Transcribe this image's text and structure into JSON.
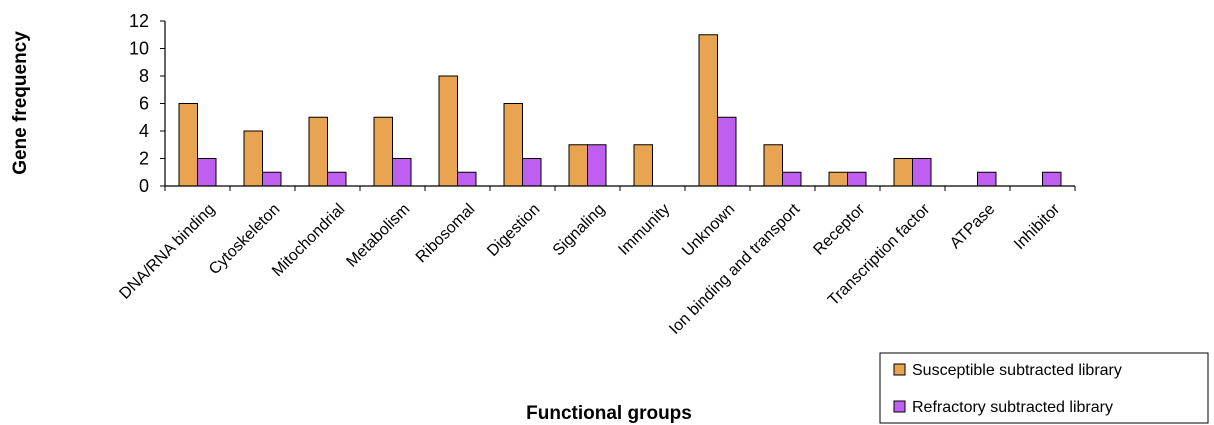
{
  "chart_data": {
    "type": "bar",
    "title": "",
    "xlabel": "Functional groups",
    "ylabel": "Gene frequency",
    "ylim": [
      0,
      12
    ],
    "yticks": [
      0,
      2,
      4,
      6,
      8,
      10,
      12
    ],
    "grid": false,
    "legend_position": "bottom-right",
    "categories": [
      "DNA/RNA binding",
      "Cytoskeleton",
      "Mitochondrial",
      "Metabolism",
      "Ribosomal",
      "Digestion",
      "Signaling",
      "Immunity",
      "Unknown",
      "Ion binding and transport",
      "Receptor",
      "Transcription factor",
      "ATPase",
      "Inhibitor"
    ],
    "series": [
      {
        "name": "Susceptible subtracted library",
        "color": "#E8A450",
        "values": [
          6,
          4,
          5,
          5,
          8,
          6,
          3,
          3,
          11,
          3,
          1,
          2,
          0,
          0
        ]
      },
      {
        "name": "Refractory subtracted library",
        "color": "#BF5FF0",
        "values": [
          2,
          1,
          1,
          2,
          1,
          2,
          3,
          0,
          5,
          1,
          1,
          2,
          1,
          1
        ]
      }
    ]
  }
}
